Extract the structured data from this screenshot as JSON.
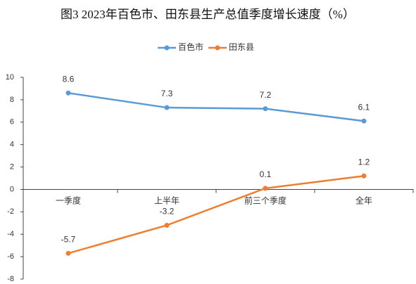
{
  "chart_data": {
    "type": "line",
    "title": "图3  2023年百色市、田东县生产总值季度增长速度（%）",
    "categories": [
      "一季度",
      "上半年",
      "前三个季度",
      "全年"
    ],
    "series": [
      {
        "name": "百色市",
        "color": "#5b9bd5",
        "values": [
          8.6,
          7.3,
          7.2,
          6.1
        ]
      },
      {
        "name": "田东县",
        "color": "#ed7d31",
        "values": [
          -5.7,
          -3.2,
          0.1,
          1.2
        ]
      }
    ],
    "ylim": [
      -8,
      10
    ],
    "yticks": [
      -8,
      -6,
      -4,
      -2,
      0,
      2,
      4,
      6,
      8,
      10
    ],
    "legend": "top"
  }
}
